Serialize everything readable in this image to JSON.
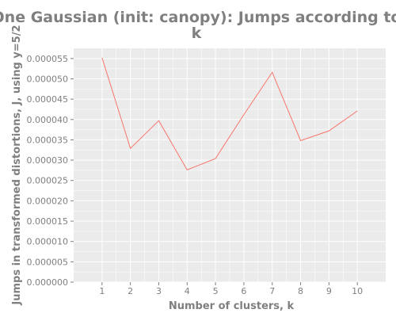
{
  "chart_data": {
    "type": "line",
    "title_lines": [
      "One Gaussian (init: canopy): Jumps according to",
      "k"
    ],
    "xlabel": "Number of clusters, k",
    "ylabel": "Jumps in transformed distortions, J, using y=5/2",
    "x": [
      1,
      2,
      3,
      4,
      5,
      6,
      7,
      8,
      9,
      10
    ],
    "series": [
      {
        "values": [
          5.52e-05,
          3.29e-05,
          3.97e-05,
          2.76e-05,
          3.04e-05,
          4.12e-05,
          5.16e-05,
          3.48e-05,
          3.72e-05,
          4.21e-05
        ]
      }
    ],
    "xlim": [
      0,
      11
    ],
    "ylim": [
      0,
      5.75e-05
    ],
    "yticks": [
      "0.000000",
      "0.000005",
      "0.000010",
      "0.000015",
      "0.000020",
      "0.000025",
      "0.000030",
      "0.000035",
      "0.000040",
      "0.000045",
      "0.000050",
      "0.000055"
    ],
    "xticks": [
      "1",
      "2",
      "3",
      "4",
      "5",
      "6",
      "7",
      "8",
      "9",
      "10"
    ],
    "grid": true,
    "colors": {
      "panel": "#ebebeb",
      "grid": "#ffffff",
      "line": "#f8766d",
      "text": "#7f7f7f"
    }
  }
}
